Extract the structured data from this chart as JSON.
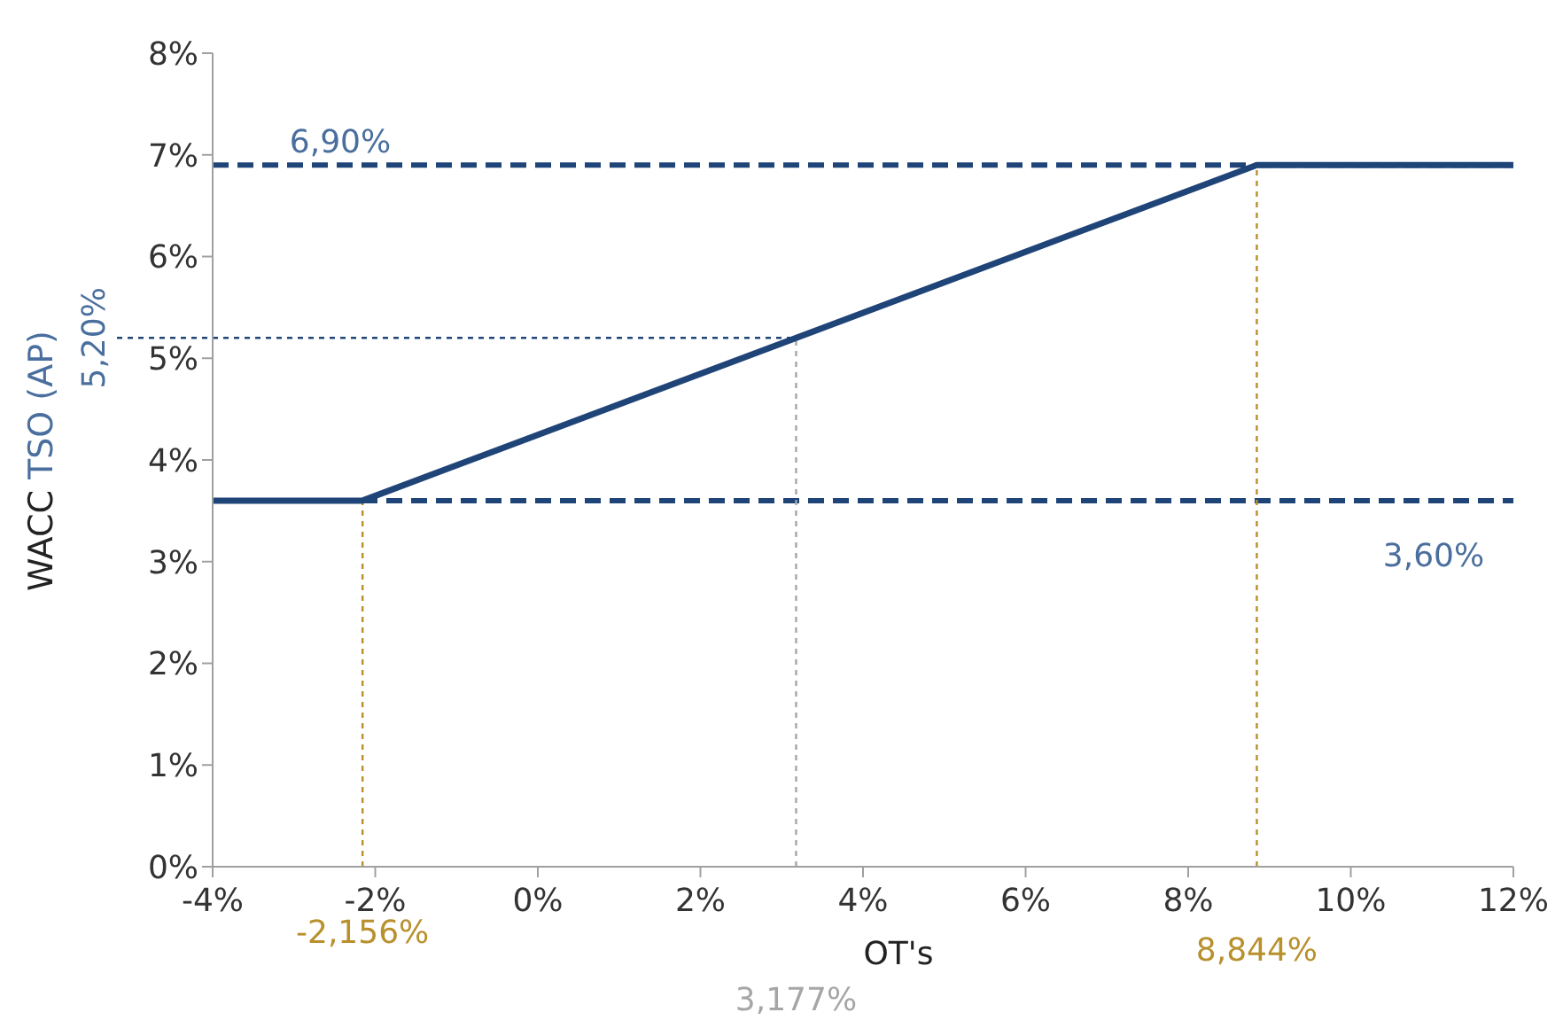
{
  "chart_data": {
    "type": "line",
    "ylabel": "WACC TSO (AP)",
    "xlabel": "OT's",
    "x": [
      -4,
      -2.156,
      8.844,
      12
    ],
    "series": [
      {
        "color": "#1f4478",
        "values": [
          3.6,
          3.6,
          6.9,
          6.9
        ]
      }
    ],
    "xlim": [
      -4,
      12
    ],
    "xticks": [
      {
        "value": -4,
        "label": "-4%"
      },
      {
        "value": -2,
        "label": "-2%"
      },
      {
        "value": 0,
        "label": "0%"
      },
      {
        "value": 2,
        "label": "2%"
      },
      {
        "value": 4,
        "label": "4%"
      },
      {
        "value": 6,
        "label": "6%"
      },
      {
        "value": 8,
        "label": "8%"
      },
      {
        "value": 10,
        "label": "10%"
      },
      {
        "value": 12,
        "label": "12%"
      }
    ],
    "ylim": [
      0,
      8
    ],
    "yticks": [
      {
        "value": 0,
        "label": "0%"
      },
      {
        "value": 1,
        "label": "1%"
      },
      {
        "value": 2,
        "label": "2%"
      },
      {
        "value": 3,
        "label": "3%"
      },
      {
        "value": 4,
        "label": "4%"
      },
      {
        "value": 5,
        "label": "5%"
      },
      {
        "value": 6,
        "label": "6%"
      },
      {
        "value": 7,
        "label": "7%"
      },
      {
        "value": 8,
        "label": "8%"
      }
    ],
    "ref_lines": [
      {
        "axis": "y",
        "value": 6.9,
        "label": "6,90%",
        "color": "#1f4478",
        "line_style": "dashed"
      },
      {
        "axis": "y",
        "value": 3.6,
        "label": "3,60%",
        "color": "#1f4478",
        "line_style": "dashed"
      },
      {
        "axis": "y",
        "value": 5.2,
        "label": "5,20%",
        "color": "#1f4478",
        "line_style": "dashed"
      },
      {
        "axis": "x",
        "value": -2.156,
        "label": "-2,156%",
        "color": "#b8902c",
        "line_style": "dashed"
      },
      {
        "axis": "x",
        "value": 3.177,
        "label": "3,177%",
        "color": "#a6a6a6",
        "line_style": "dashed"
      },
      {
        "axis": "x",
        "value": 8.844,
        "label": "8,844%",
        "color": "#b8902c",
        "line_style": "dashed"
      }
    ],
    "grid": false,
    "legend": false,
    "marker": "none",
    "line_style": "solid"
  }
}
